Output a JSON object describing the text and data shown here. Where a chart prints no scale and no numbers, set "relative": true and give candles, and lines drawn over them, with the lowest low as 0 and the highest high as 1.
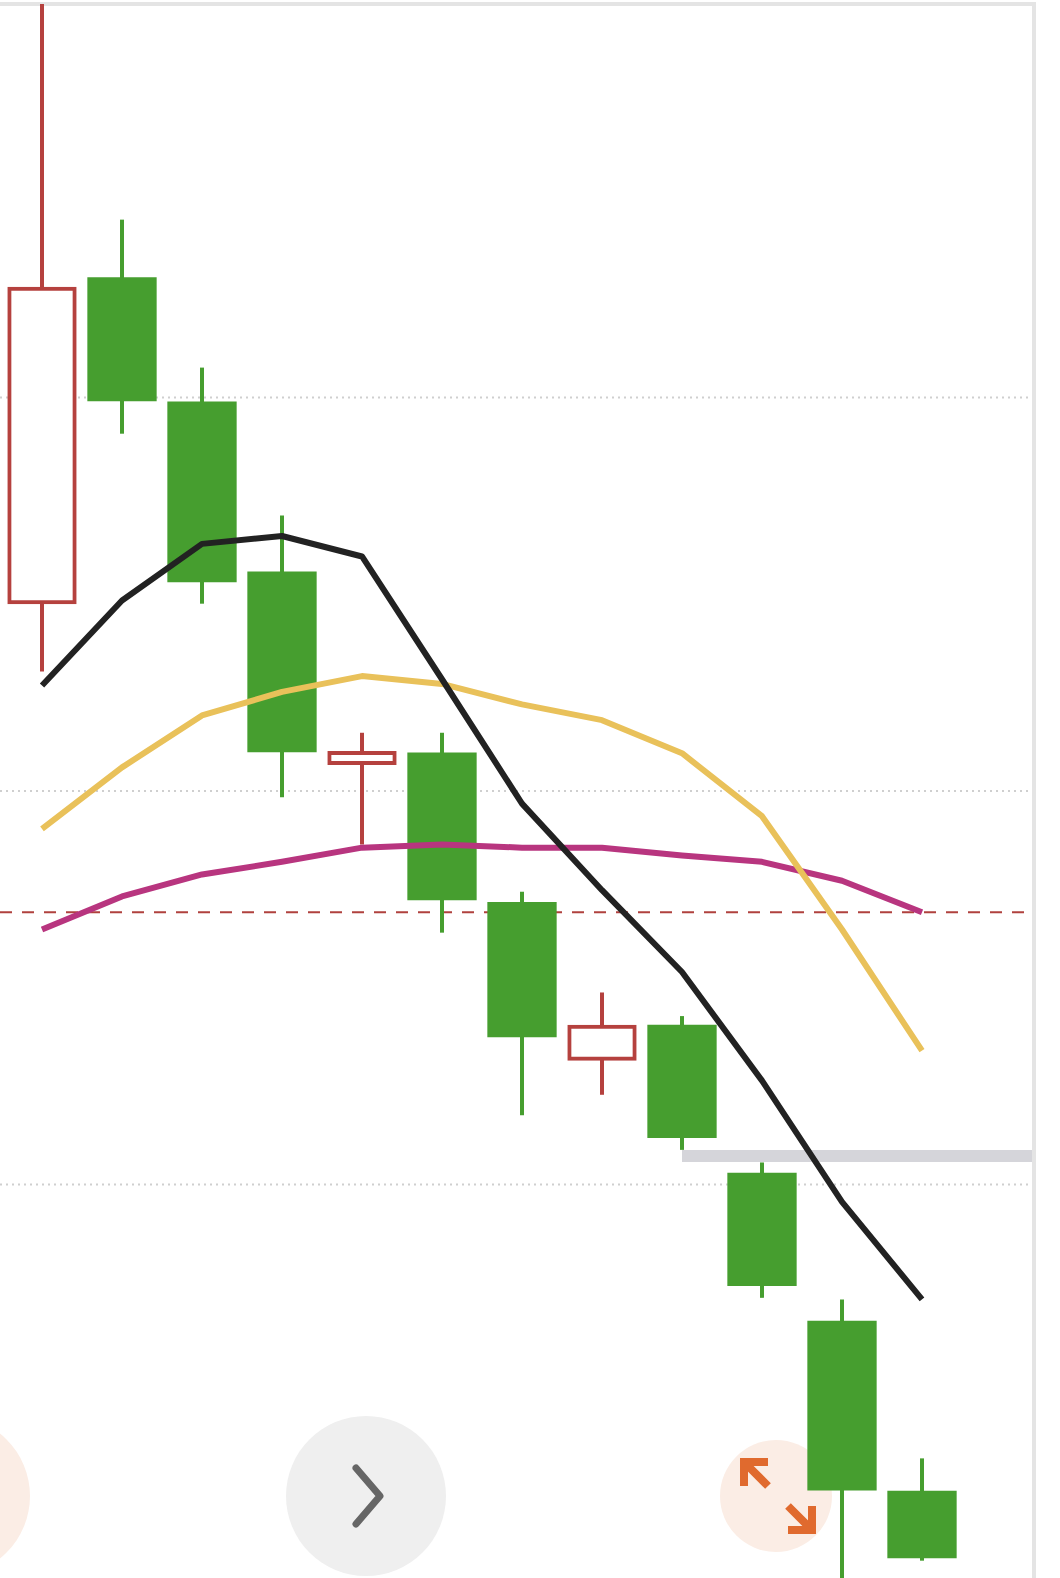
{
  "chart_data": {
    "type": "candlestick",
    "relative": true,
    "tick_labels": false,
    "grid": "y",
    "marker": "none",
    "categories": [
      null,
      null,
      null,
      null,
      null,
      null,
      null,
      null,
      null,
      null,
      null,
      null
    ],
    "ohlc": [
      [
        0.619,
        1,
        0.576,
        0.82
      ],
      [
        0.826,
        0.863,
        0.727,
        0.748
      ],
      [
        0.747,
        0.769,
        0.619,
        0.633
      ],
      [
        0.639,
        0.675,
        0.496,
        0.525
      ],
      [
        0.517,
        0.537,
        0.466,
        0.525
      ],
      [
        0.524,
        0.537,
        0.41,
        0.431
      ],
      [
        0.429,
        0.436,
        0.294,
        0.344
      ],
      [
        0.329,
        0.372,
        0.307,
        0.351
      ],
      [
        0.351,
        0.357,
        0.272,
        0.28
      ],
      [
        0.257,
        0.264,
        0.178,
        0.186
      ],
      [
        0.163,
        0.177,
        0,
        0.056
      ],
      [
        0.055,
        0.076,
        0.011,
        0.013
      ]
    ],
    "colors": [
      "#b5413e",
      "#469e2f",
      "#469e2f",
      "#469e2f",
      "#b5413e",
      "#469e2f",
      "#469e2f",
      "#b5413e",
      "#469e2f",
      "#469e2f",
      "#469e2f",
      "#469e2f"
    ],
    "series": [
      {
        "type": "line",
        "color": "#222222",
        "values": [
          0.567,
          0.621,
          0.657,
          0.662,
          0.649,
          0.571,
          0.492,
          0.437,
          0.385,
          0.316,
          0.239,
          0.177
        ]
      },
      {
        "type": "line",
        "color": "#e9c15a",
        "values": [
          0.476,
          0.515,
          0.548,
          0.563,
          0.573,
          0.568,
          0.555,
          0.545,
          0.524,
          0.484,
          0.412,
          0.335
        ]
      },
      {
        "type": "line",
        "color": "#b8357f",
        "values": [
          0.412,
          0.433,
          0.447,
          0.455,
          0.464,
          0.466,
          0.464,
          0.464,
          0.459,
          0.455,
          0.443,
          0.423
        ]
      }
    ],
    "ref_lines": [
      {
        "axis": "y",
        "value": 0.423,
        "color": "#b0413e",
        "line_style": "dashed"
      }
    ]
  }
}
